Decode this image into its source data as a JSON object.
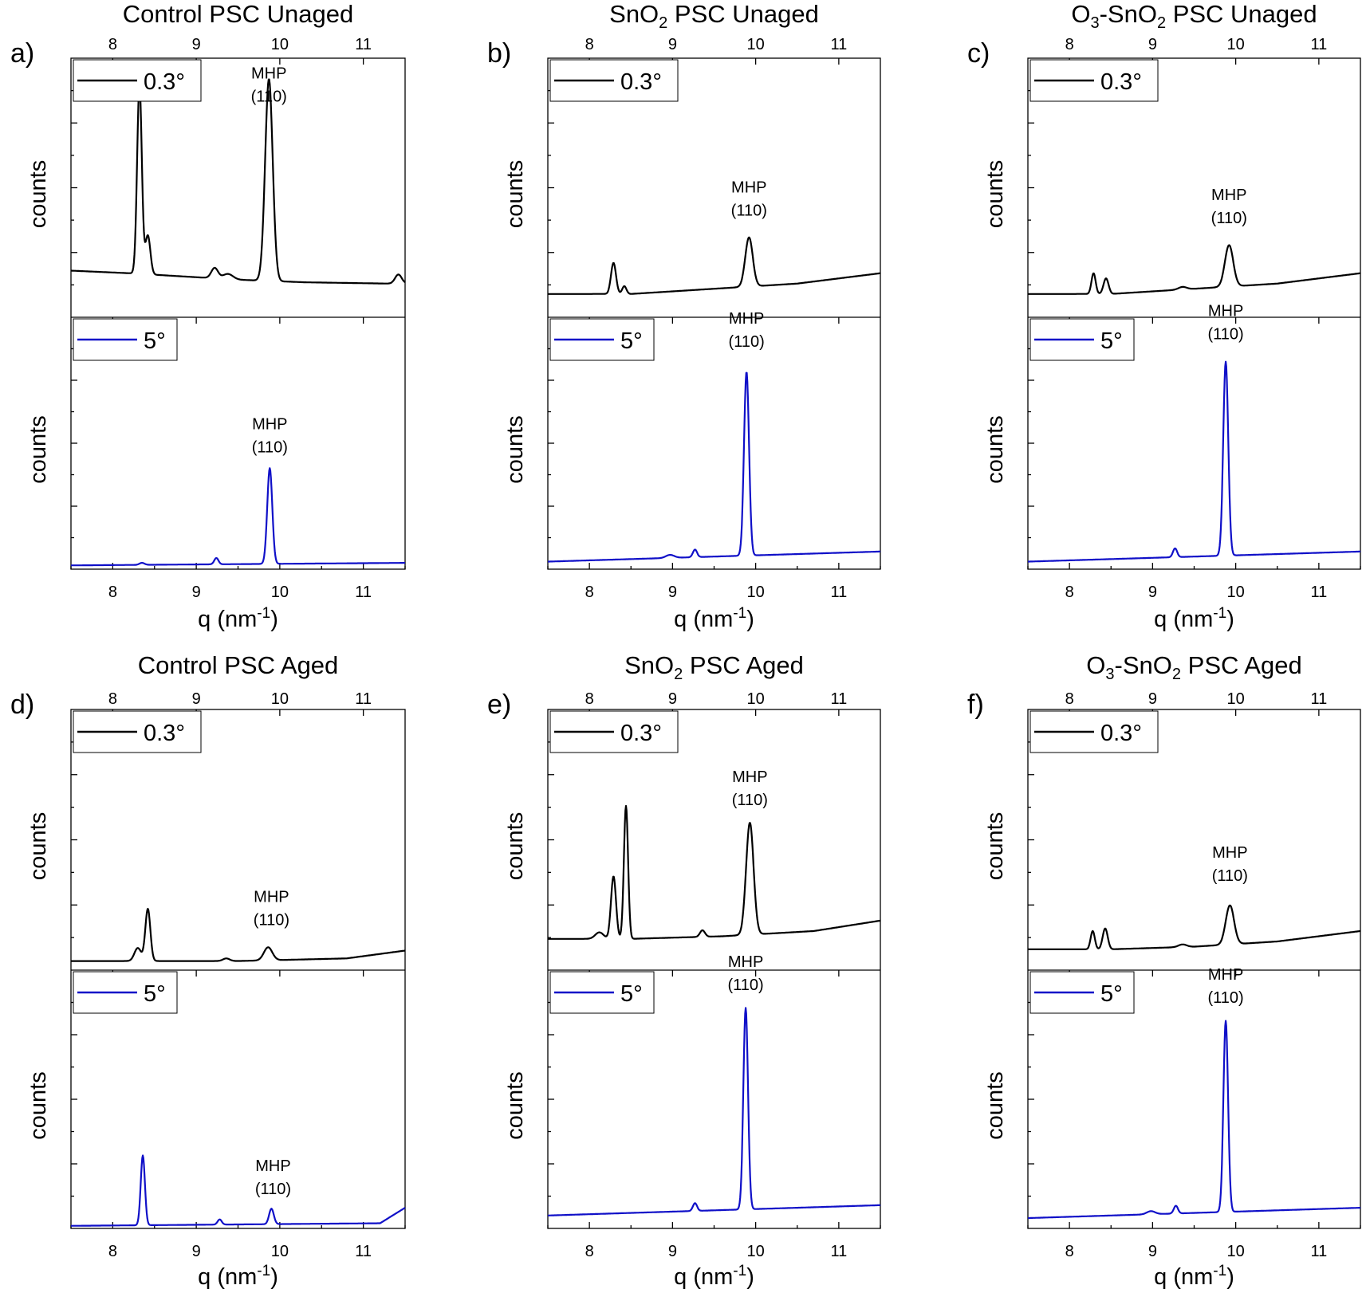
{
  "colors": {
    "low_angle": "#000000",
    "high_angle": "#1010c8"
  },
  "chart_data": [
    {
      "type": "line",
      "panel_label": "a)",
      "title": "Control PSC Unaged",
      "title_segments": [
        {
          "t": "Control PSC Unaged"
        }
      ],
      "xlabel": "q (nm",
      "xlabel_sup": "-1",
      "xlabel_tail": ")",
      "xlim": [
        7.5,
        11.5
      ],
      "xticks": [
        8,
        9,
        10,
        11
      ],
      "grid": false,
      "subplots": [
        {
          "ylabel": "counts",
          "legend": {
            "label": "0.3°",
            "position": "top-left"
          },
          "color": "#000000",
          "ylim": [
            0,
            1
          ],
          "baseline": [
            [
              7.5,
              0.18
            ],
            [
              8.2,
              0.17
            ],
            [
              9.5,
              0.145
            ],
            [
              10.3,
              0.135
            ],
            [
              11.3,
              0.13
            ],
            [
              11.5,
              0.13
            ]
          ],
          "peaks": [
            {
              "q": 8.32,
              "h": 0.73,
              "w": 0.028
            },
            {
              "q": 8.42,
              "h": 0.15,
              "w": 0.03
            },
            {
              "q": 9.22,
              "h": 0.04,
              "w": 0.04
            },
            {
              "q": 9.38,
              "h": 0.02,
              "w": 0.06
            },
            {
              "q": 9.87,
              "h": 0.78,
              "w": 0.045
            },
            {
              "q": 11.42,
              "h": 0.035,
              "w": 0.04
            }
          ],
          "annotation": {
            "line1": "MHP",
            "line2": "(110)",
            "q": 9.87,
            "y": 0.83
          }
        },
        {
          "ylabel": "counts",
          "legend": {
            "label": "5°",
            "position": "top-left"
          },
          "color": "#1010c8",
          "ylim": [
            0,
            1
          ],
          "baseline": [
            [
              7.5,
              0.015
            ],
            [
              11.5,
              0.025
            ]
          ],
          "peaks": [
            {
              "q": 8.35,
              "h": 0.008,
              "w": 0.03
            },
            {
              "q": 9.24,
              "h": 0.025,
              "w": 0.025
            },
            {
              "q": 9.88,
              "h": 0.38,
              "w": 0.03
            }
          ],
          "annotation": {
            "line1": "MHP",
            "line2": "(110)",
            "q": 9.88,
            "y": 0.46
          }
        }
      ]
    },
    {
      "type": "line",
      "panel_label": "b)",
      "title": "SnO2 PSC Unaged",
      "title_segments": [
        {
          "t": "SnO"
        },
        {
          "t": "2",
          "sub": true
        },
        {
          "t": " PSC Unaged"
        }
      ],
      "xlabel": "q (nm",
      "xlabel_sup": "-1",
      "xlabel_tail": ")",
      "xlim": [
        7.5,
        11.5
      ],
      "xticks": [
        8,
        9,
        10,
        11
      ],
      "grid": false,
      "subplots": [
        {
          "ylabel": "counts",
          "legend": {
            "label": "0.3°",
            "position": "top-left"
          },
          "color": "#000000",
          "ylim": [
            0,
            1
          ],
          "baseline": [
            [
              7.5,
              0.09
            ],
            [
              8.5,
              0.09
            ],
            [
              9.5,
              0.11
            ],
            [
              10.5,
              0.13
            ],
            [
              11.5,
              0.17
            ]
          ],
          "peaks": [
            {
              "q": 8.29,
              "h": 0.12,
              "w": 0.03
            },
            {
              "q": 8.42,
              "h": 0.03,
              "w": 0.025
            },
            {
              "q": 9.92,
              "h": 0.19,
              "w": 0.045
            }
          ],
          "annotation": {
            "line1": "MHP",
            "line2": "(110)",
            "q": 9.92,
            "y": 0.39
          }
        },
        {
          "ylabel": "counts",
          "legend": {
            "label": "5°",
            "position": "top-left"
          },
          "color": "#1010c8",
          "ylim": [
            0,
            1
          ],
          "baseline": [
            [
              7.5,
              0.03
            ],
            [
              11.5,
              0.07
            ]
          ],
          "peaks": [
            {
              "q": 8.97,
              "h": 0.012,
              "w": 0.05
            },
            {
              "q": 9.27,
              "h": 0.03,
              "w": 0.025
            },
            {
              "q": 9.89,
              "h": 0.73,
              "w": 0.03
            }
          ],
          "annotation": {
            "line1": "MHP",
            "line2": "(110)",
            "q": 9.89,
            "y": 0.88
          }
        }
      ]
    },
    {
      "type": "line",
      "panel_label": "c)",
      "title": "O3-SnO2 PSC Unaged",
      "title_segments": [
        {
          "t": "O"
        },
        {
          "t": "3",
          "sub": true
        },
        {
          "t": "-SnO"
        },
        {
          "t": "2",
          "sub": true
        },
        {
          "t": " PSC Unaged"
        }
      ],
      "xlabel": "q (nm",
      "xlabel_sup": "-1",
      "xlabel_tail": ")",
      "xlim": [
        7.5,
        11.5
      ],
      "xticks": [
        8,
        9,
        10,
        11
      ],
      "grid": false,
      "subplots": [
        {
          "ylabel": "counts",
          "legend": {
            "label": "0.3°",
            "position": "top-left"
          },
          "color": "#000000",
          "ylim": [
            0,
            1
          ],
          "baseline": [
            [
              7.5,
              0.09
            ],
            [
              8.5,
              0.09
            ],
            [
              9.5,
              0.11
            ],
            [
              10.5,
              0.13
            ],
            [
              11.5,
              0.17
            ]
          ],
          "peaks": [
            {
              "q": 8.29,
              "h": 0.08,
              "w": 0.025
            },
            {
              "q": 8.44,
              "h": 0.06,
              "w": 0.03
            },
            {
              "q": 9.36,
              "h": 0.01,
              "w": 0.05
            },
            {
              "q": 9.92,
              "h": 0.16,
              "w": 0.05
            }
          ],
          "annotation": {
            "line1": "MHP",
            "line2": "(110)",
            "q": 9.92,
            "y": 0.36
          }
        },
        {
          "ylabel": "counts",
          "legend": {
            "label": "5°",
            "position": "top-left"
          },
          "color": "#1010c8",
          "ylim": [
            0,
            1
          ],
          "baseline": [
            [
              7.5,
              0.03
            ],
            [
              11.5,
              0.07
            ]
          ],
          "peaks": [
            {
              "q": 9.27,
              "h": 0.035,
              "w": 0.025
            },
            {
              "q": 9.88,
              "h": 0.77,
              "w": 0.03
            }
          ],
          "annotation": {
            "line1": "MHP",
            "line2": "(110)",
            "q": 9.88,
            "y": 0.91
          }
        }
      ]
    },
    {
      "type": "line",
      "panel_label": "d)",
      "title": "Control PSC Aged",
      "title_segments": [
        {
          "t": "Control PSC Aged"
        }
      ],
      "xlabel": "q (nm",
      "xlabel_sup": "-1",
      "xlabel_tail": ")",
      "xlim": [
        7.5,
        11.5
      ],
      "xticks": [
        8,
        9,
        10,
        11
      ],
      "grid": false,
      "subplots": [
        {
          "ylabel": "counts",
          "legend": {
            "label": "0.3°",
            "position": "top-left"
          },
          "color": "#000000",
          "ylim": [
            0,
            1
          ],
          "baseline": [
            [
              7.5,
              0.035
            ],
            [
              9.5,
              0.035
            ],
            [
              10.8,
              0.045
            ],
            [
              11.5,
              0.075
            ]
          ],
          "peaks": [
            {
              "q": 8.3,
              "h": 0.05,
              "w": 0.04
            },
            {
              "q": 8.42,
              "h": 0.2,
              "w": 0.03
            },
            {
              "q": 9.36,
              "h": 0.01,
              "w": 0.04
            },
            {
              "q": 9.86,
              "h": 0.05,
              "w": 0.05
            }
          ],
          "annotation": {
            "line1": "MHP",
            "line2": "(110)",
            "q": 9.9,
            "y": 0.17
          }
        },
        {
          "ylabel": "counts",
          "legend": {
            "label": "5°",
            "position": "top-left"
          },
          "color": "#1010c8",
          "ylim": [
            0,
            1
          ],
          "baseline": [
            [
              7.5,
              0.01
            ],
            [
              11.2,
              0.02
            ],
            [
              11.5,
              0.08
            ]
          ],
          "peaks": [
            {
              "q": 8.36,
              "h": 0.27,
              "w": 0.025
            },
            {
              "q": 9.28,
              "h": 0.02,
              "w": 0.025
            },
            {
              "q": 9.9,
              "h": 0.06,
              "w": 0.028
            }
          ],
          "annotation": {
            "line1": "MHP",
            "line2": "(110)",
            "q": 9.92,
            "y": 0.13
          }
        }
      ]
    },
    {
      "type": "line",
      "panel_label": "e)",
      "title": "SnO2 PSC Aged",
      "title_segments": [
        {
          "t": "SnO"
        },
        {
          "t": "2",
          "sub": true
        },
        {
          "t": " PSC Aged"
        }
      ],
      "xlabel": "q (nm",
      "xlabel_sup": "-1",
      "xlabel_tail": ")",
      "xlim": [
        7.5,
        11.5
      ],
      "xticks": [
        8,
        9,
        10,
        11
      ],
      "grid": false,
      "subplots": [
        {
          "ylabel": "counts",
          "legend": {
            "label": "0.3°",
            "position": "top-left"
          },
          "color": "#000000",
          "ylim": [
            0,
            1
          ],
          "baseline": [
            [
              7.5,
              0.12
            ],
            [
              8.5,
              0.12
            ],
            [
              9.6,
              0.13
            ],
            [
              10.7,
              0.15
            ],
            [
              11.5,
              0.19
            ]
          ],
          "peaks": [
            {
              "q": 8.12,
              "h": 0.025,
              "w": 0.05
            },
            {
              "q": 8.29,
              "h": 0.24,
              "w": 0.03
            },
            {
              "q": 8.44,
              "h": 0.51,
              "w": 0.025
            },
            {
              "q": 9.36,
              "h": 0.025,
              "w": 0.03
            },
            {
              "q": 9.93,
              "h": 0.43,
              "w": 0.045
            }
          ],
          "annotation": {
            "line1": "MHP",
            "line2": "(110)",
            "q": 9.93,
            "y": 0.63
          }
        },
        {
          "ylabel": "counts",
          "legend": {
            "label": "5°",
            "position": "top-left"
          },
          "color": "#1010c8",
          "ylim": [
            0,
            1
          ],
          "baseline": [
            [
              7.5,
              0.05
            ],
            [
              11.5,
              0.09
            ]
          ],
          "peaks": [
            {
              "q": 9.27,
              "h": 0.03,
              "w": 0.025
            },
            {
              "q": 9.88,
              "h": 0.78,
              "w": 0.028
            }
          ],
          "annotation": {
            "line1": "MHP",
            "line2": "(110)",
            "q": 9.88,
            "y": 0.92
          }
        }
      ]
    },
    {
      "type": "line",
      "panel_label": "f)",
      "title": "O3-SnO2 PSC Aged",
      "title_segments": [
        {
          "t": "O"
        },
        {
          "t": "3",
          "sub": true
        },
        {
          "t": "-SnO"
        },
        {
          "t": "2",
          "sub": true
        },
        {
          "t": " PSC Aged"
        }
      ],
      "xlabel": "q (nm",
      "xlabel_sup": "-1",
      "xlabel_tail": ")",
      "xlim": [
        7.5,
        11.5
      ],
      "xticks": [
        8,
        9,
        10,
        11
      ],
      "grid": false,
      "subplots": [
        {
          "ylabel": "counts",
          "legend": {
            "label": "0.3°",
            "position": "top-left"
          },
          "color": "#000000",
          "ylim": [
            0,
            1
          ],
          "baseline": [
            [
              7.5,
              0.08
            ],
            [
              8.5,
              0.08
            ],
            [
              9.5,
              0.09
            ],
            [
              10.5,
              0.11
            ],
            [
              11.5,
              0.15
            ]
          ],
          "peaks": [
            {
              "q": 8.28,
              "h": 0.07,
              "w": 0.025
            },
            {
              "q": 8.43,
              "h": 0.08,
              "w": 0.03
            },
            {
              "q": 9.36,
              "h": 0.01,
              "w": 0.05
            },
            {
              "q": 9.93,
              "h": 0.15,
              "w": 0.05
            }
          ],
          "annotation": {
            "line1": "MHP",
            "line2": "(110)",
            "q": 9.93,
            "y": 0.34
          }
        },
        {
          "ylabel": "counts",
          "legend": {
            "label": "5°",
            "position": "top-left"
          },
          "color": "#1010c8",
          "ylim": [
            0,
            1
          ],
          "baseline": [
            [
              7.5,
              0.04
            ],
            [
              11.5,
              0.08
            ]
          ],
          "peaks": [
            {
              "q": 8.98,
              "h": 0.012,
              "w": 0.05
            },
            {
              "q": 9.28,
              "h": 0.03,
              "w": 0.025
            },
            {
              "q": 9.88,
              "h": 0.74,
              "w": 0.028
            }
          ],
          "annotation": {
            "line1": "MHP",
            "line2": "(110)",
            "q": 9.88,
            "y": 0.87
          }
        }
      ]
    }
  ]
}
